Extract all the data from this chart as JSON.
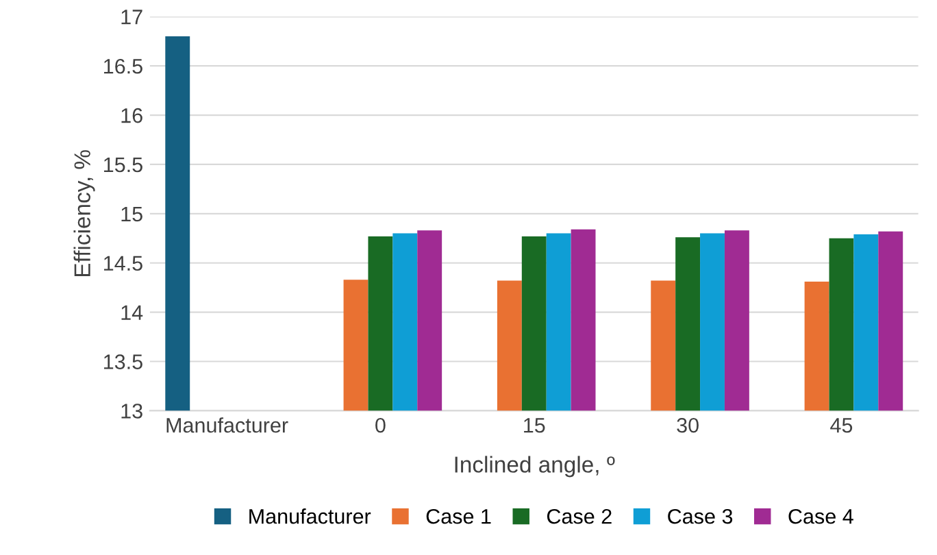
{
  "chart_data": {
    "type": "bar",
    "xlabel": "Inclined angle, º",
    "ylabel": "Efficiency, %",
    "categories": [
      "Manufacturer",
      "0",
      "15",
      "30",
      "45"
    ],
    "series": [
      {
        "name": "Manufacturer",
        "color": "#156082",
        "values": [
          16.8,
          null,
          null,
          null,
          null
        ]
      },
      {
        "name": "Case 1",
        "color": "#e97132",
        "values": [
          null,
          14.33,
          14.32,
          14.32,
          14.31
        ]
      },
      {
        "name": "Case 2",
        "color": "#196b24",
        "values": [
          null,
          14.77,
          14.77,
          14.76,
          14.75
        ]
      },
      {
        "name": "Case 3",
        "color": "#0f9ed5",
        "values": [
          null,
          14.8,
          14.8,
          14.8,
          14.79
        ]
      },
      {
        "name": "Case 4",
        "color": "#a02b93",
        "values": [
          null,
          14.83,
          14.84,
          14.83,
          14.82
        ]
      }
    ],
    "ylim": [
      13,
      17
    ],
    "yticks": [
      13,
      13.5,
      14,
      14.5,
      15,
      15.5,
      16,
      16.5,
      17
    ],
    "grid": "y",
    "legend": "bottom"
  }
}
